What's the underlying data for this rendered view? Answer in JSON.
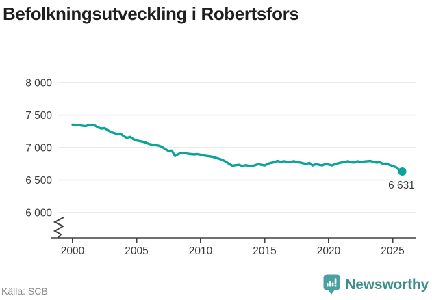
{
  "page": {
    "title": "Befolkningsutveckling i Robertsfors"
  },
  "chart_data": {
    "type": "line",
    "title": "Befolkningsutveckling i Robertsfors",
    "xlabel": "",
    "ylabel": "",
    "x_start": 2000,
    "x_step_years": 0.25,
    "x_end": 2025.75,
    "values": [
      7355,
      7350,
      7348,
      7338,
      7332,
      7344,
      7352,
      7340,
      7310,
      7295,
      7300,
      7270,
      7240,
      7225,
      7205,
      7215,
      7175,
      7150,
      7165,
      7130,
      7110,
      7100,
      7090,
      7075,
      7055,
      7045,
      7038,
      7030,
      7010,
      6975,
      6950,
      6955,
      6870,
      6900,
      6920,
      6915,
      6905,
      6900,
      6895,
      6900,
      6890,
      6880,
      6870,
      6865,
      6855,
      6840,
      6825,
      6805,
      6780,
      6745,
      6720,
      6730,
      6735,
      6715,
      6730,
      6720,
      6715,
      6730,
      6745,
      6735,
      6725,
      6750,
      6765,
      6775,
      6795,
      6780,
      6790,
      6782,
      6778,
      6790,
      6780,
      6770,
      6760,
      6745,
      6765,
      6725,
      6745,
      6735,
      6725,
      6750,
      6740,
      6725,
      6745,
      6760,
      6770,
      6780,
      6790,
      6775,
      6770,
      6790,
      6780,
      6785,
      6790,
      6795,
      6780,
      6770,
      6775,
      6750,
      6755,
      6735,
      6715,
      6700,
      6660,
      6631
    ],
    "end_value": 6631,
    "end_label": "6 631",
    "yticks": [
      {
        "value": 8000,
        "label": "8 000"
      },
      {
        "value": 7500,
        "label": "7 500"
      },
      {
        "value": 7000,
        "label": "7 000"
      },
      {
        "value": 6500,
        "label": "6 500"
      },
      {
        "value": 6000,
        "label": "6 000"
      }
    ],
    "xticks": [
      {
        "value": 2000,
        "label": "2000"
      },
      {
        "value": 2005,
        "label": "2005"
      },
      {
        "value": 2010,
        "label": "2010"
      },
      {
        "value": 2015,
        "label": "2015"
      },
      {
        "value": 2020,
        "label": "2020"
      },
      {
        "value": 2025,
        "label": "2025"
      }
    ],
    "ylim": [
      6000,
      8000
    ],
    "xlim": [
      2000,
      2026
    ],
    "grid": "horizontal",
    "axis_break": true,
    "legend_position": "none",
    "line_color": "#0CA39B"
  },
  "colors": {
    "accent_line": "#0CA39B",
    "grid": "#E3E3E3",
    "axis": "#404040",
    "tick_text": "#3A3A3A",
    "title_text": "#1F1F1F",
    "source_text": "#8A8A8A",
    "brand_text": "#3F8E8C",
    "brand_icon": "#4BA0A0"
  },
  "footer": {
    "source": "Källa: SCB",
    "brand": "Newsworthy"
  }
}
